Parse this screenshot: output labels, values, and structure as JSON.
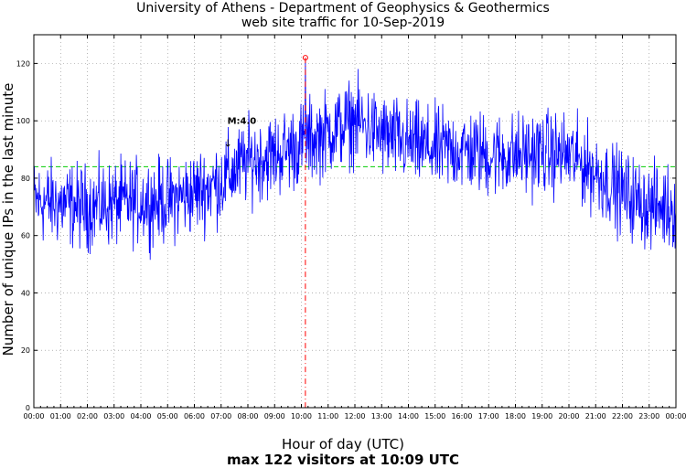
{
  "chart_data": {
    "type": "line",
    "title": "University of Athens - Department of Geophysics & Geothermics",
    "subtitle": "web site traffic for 10-Sep-2019",
    "xlabel": "Hour of day (UTC)",
    "ylabel": "Number of unique IPs in the last minute",
    "footer": "max 122 visitors at 10:09 UTC",
    "ylim": [
      0,
      130
    ],
    "yticks": [
      0,
      20,
      40,
      60,
      80,
      100,
      120
    ],
    "xlim_hours": [
      0,
      24
    ],
    "xtick_labels": [
      "00:00",
      "01:00",
      "02:00",
      "03:00",
      "04:00",
      "05:00",
      "06:00",
      "07:00",
      "08:00",
      "09:00",
      "10:00",
      "11:00",
      "12:00",
      "13:00",
      "14:00",
      "15:00",
      "16:00",
      "17:00",
      "18:00",
      "19:00",
      "20:00",
      "21:00",
      "22:00",
      "23:00",
      "00:00"
    ],
    "grid": true,
    "series": [
      {
        "values_hourly_mean": [
          72,
          71,
          70,
          71,
          72,
          72,
          75,
          79,
          86,
          88,
          92,
          96,
          100,
          95,
          92,
          90,
          90,
          88,
          88,
          89,
          88,
          82,
          75,
          70
        ],
        "noise_amplitude": 9
      }
    ],
    "average_line": {
      "value": 84,
      "color": "#00cc00"
    },
    "max_marker": {
      "time": "10:09",
      "value": 122,
      "color": "#ff0000"
    },
    "event_marker": {
      "label": "M:4.0",
      "time": "07:12",
      "value": 93
    },
    "colors": {
      "series": "#0000ff",
      "grid": "#888888"
    }
  }
}
